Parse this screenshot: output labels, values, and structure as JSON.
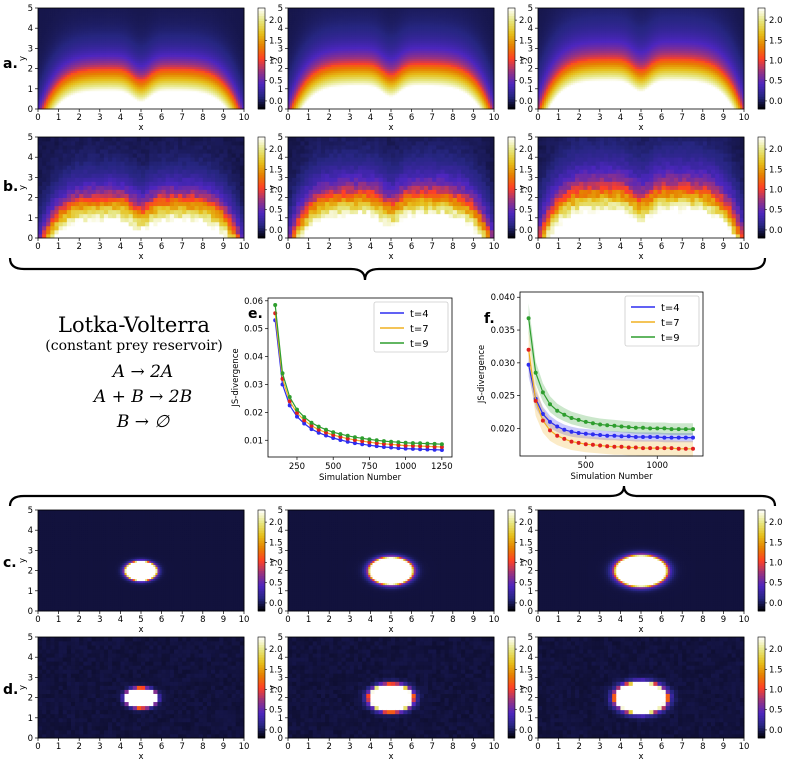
{
  "panel_labels": {
    "a": "a.",
    "b": "b.",
    "c": "c.",
    "d": "d.",
    "e": "e.",
    "f": "f."
  },
  "model": {
    "title": "Lotka-Volterra",
    "subtitle": "(constant prey reservoir)",
    "reactions": [
      "A → 2A",
      "A + B → 2B",
      "B → ∅"
    ]
  },
  "colors": {
    "blue": "#2d2df0",
    "orange": "#f0b020",
    "green": "#2e9e2e",
    "red": "#e02020"
  },
  "heatmap_axes": {
    "xlabel": "x",
    "ylabel": "y",
    "xticks": [
      "0",
      "1",
      "2",
      "3",
      "4",
      "5",
      "6",
      "7",
      "8",
      "9",
      "10"
    ],
    "yticks": [
      "0",
      "1",
      "2",
      "3",
      "4",
      "5"
    ],
    "colorbar_ticks": [
      "0.0",
      "0.5",
      "1.0",
      "1.5",
      "2.0"
    ],
    "colormap": "CMRmap"
  },
  "chart_data": [
    {
      "type": "heatmap",
      "panel": "a",
      "kind": "wave",
      "noise": false,
      "description_values": {
        "xlim": [
          0,
          10
        ],
        "ylim": [
          0,
          5
        ],
        "clim": [
          -0.2,
          2.3
        ]
      }
    },
    {
      "type": "heatmap",
      "panel": "b",
      "kind": "wave",
      "noise": true,
      "description_values": {
        "xlim": [
          0,
          10
        ],
        "ylim": [
          0,
          5
        ],
        "clim": [
          -0.2,
          2.3
        ]
      }
    },
    {
      "type": "heatmap",
      "panel": "c",
      "kind": "blob",
      "noise": false,
      "blob_radius_x": [
        0.8,
        1.1,
        1.3
      ],
      "blob_radius_y": [
        0.5,
        0.7,
        0.8
      ],
      "description_values": {
        "xlim": [
          0,
          10
        ],
        "ylim": [
          0,
          5
        ],
        "clim": [
          -0.2,
          2.3
        ]
      }
    },
    {
      "type": "heatmap",
      "panel": "d",
      "kind": "blob",
      "noise": true,
      "blob_radius_x": [
        0.8,
        1.1,
        1.3
      ],
      "blob_radius_y": [
        0.5,
        0.7,
        0.8
      ],
      "description_values": {
        "xlim": [
          0,
          10
        ],
        "ylim": [
          0,
          5
        ],
        "clim": [
          -0.2,
          2.3
        ]
      }
    },
    {
      "type": "line",
      "panel": "e",
      "xlabel": "Simulation Number",
      "ylabel": "JS-divergence",
      "xlim": [
        50,
        1320
      ],
      "ylim": [
        0.004,
        0.061
      ],
      "xticks": [
        250,
        500,
        750,
        1000,
        1250
      ],
      "yticks": [
        0.01,
        0.02,
        0.03,
        0.04,
        0.05,
        0.06
      ],
      "ytick_labels": [
        "0.01",
        "0.02",
        "0.03",
        "0.04",
        "0.05",
        "0.06"
      ],
      "x": [
        100,
        150,
        200,
        250,
        300,
        350,
        400,
        450,
        500,
        550,
        600,
        650,
        700,
        750,
        800,
        850,
        900,
        950,
        1000,
        1050,
        1100,
        1150,
        1200,
        1250
      ],
      "series": [
        {
          "name": "t=4",
          "color_key": "blue",
          "values": [
            0.053,
            0.03,
            0.0225,
            0.0185,
            0.016,
            0.014,
            0.0127,
            0.0117,
            0.0108,
            0.0101,
            0.0095,
            0.009,
            0.0086,
            0.0082,
            0.0079,
            0.0076,
            0.0074,
            0.0072,
            0.007,
            0.0069,
            0.0068,
            0.0067,
            0.0066,
            0.0065
          ]
        },
        {
          "name": "t=7",
          "color_key": "orange",
          "marker_color_key": "red",
          "values": [
            0.0555,
            0.032,
            0.024,
            0.0198,
            0.0172,
            0.0152,
            0.0138,
            0.0128,
            0.0119,
            0.0112,
            0.0106,
            0.0101,
            0.0097,
            0.0093,
            0.009,
            0.0087,
            0.0085,
            0.0083,
            0.0081,
            0.008,
            0.0079,
            0.0078,
            0.0077,
            0.0076
          ]
        },
        {
          "name": "t=9",
          "color_key": "green",
          "values": [
            0.0585,
            0.034,
            0.0255,
            0.021,
            0.0183,
            0.0163,
            0.0149,
            0.0138,
            0.0129,
            0.0122,
            0.0116,
            0.0111,
            0.0107,
            0.0103,
            0.01,
            0.0097,
            0.0095,
            0.0093,
            0.0091,
            0.009,
            0.0089,
            0.0088,
            0.0087,
            0.0086
          ]
        }
      ],
      "legend": "top-right"
    },
    {
      "type": "line",
      "panel": "f",
      "xlabel": "Simulation Number",
      "ylabel": "JS-divergence",
      "xlim": [
        40,
        1320
      ],
      "ylim": [
        0.0158,
        0.0408
      ],
      "xticks": [
        500,
        1000
      ],
      "yticks": [
        0.02,
        0.025,
        0.03,
        0.035,
        0.04
      ],
      "ytick_labels": [
        "0.020",
        "0.025",
        "0.030",
        "0.035",
        "0.040"
      ],
      "x": [
        100,
        150,
        200,
        250,
        300,
        350,
        400,
        450,
        500,
        550,
        600,
        650,
        700,
        750,
        800,
        850,
        900,
        950,
        1000,
        1050,
        1100,
        1150,
        1200,
        1250
      ],
      "series": [
        {
          "name": "t=4",
          "color_key": "blue",
          "band": 0.0007,
          "values": [
            0.0297,
            0.0245,
            0.0222,
            0.021,
            0.0203,
            0.0198,
            0.0195,
            0.0193,
            0.0192,
            0.0191,
            0.019,
            0.0189,
            0.0189,
            0.0188,
            0.0188,
            0.0187,
            0.0187,
            0.0187,
            0.0187,
            0.0186,
            0.0186,
            0.0186,
            0.0186,
            0.0186
          ]
        },
        {
          "name": "t=7",
          "color_key": "orange",
          "marker_color_key": "red",
          "band": 0.0012,
          "values": [
            0.032,
            0.0242,
            0.0212,
            0.0197,
            0.0189,
            0.0184,
            0.018,
            0.0178,
            0.0176,
            0.0175,
            0.0174,
            0.0173,
            0.0172,
            0.0172,
            0.0171,
            0.0171,
            0.017,
            0.017,
            0.017,
            0.017,
            0.017,
            0.0169,
            0.0169,
            0.0169
          ]
        },
        {
          "name": "t=9",
          "color_key": "green",
          "band": 0.0009,
          "values": [
            0.0368,
            0.0285,
            0.0255,
            0.0237,
            0.0227,
            0.0221,
            0.0216,
            0.0213,
            0.021,
            0.0208,
            0.0206,
            0.0205,
            0.0204,
            0.0203,
            0.0202,
            0.0201,
            0.0201,
            0.02,
            0.02,
            0.02,
            0.0199,
            0.0199,
            0.0199,
            0.0199
          ]
        }
      ],
      "legend": "top-right"
    }
  ]
}
